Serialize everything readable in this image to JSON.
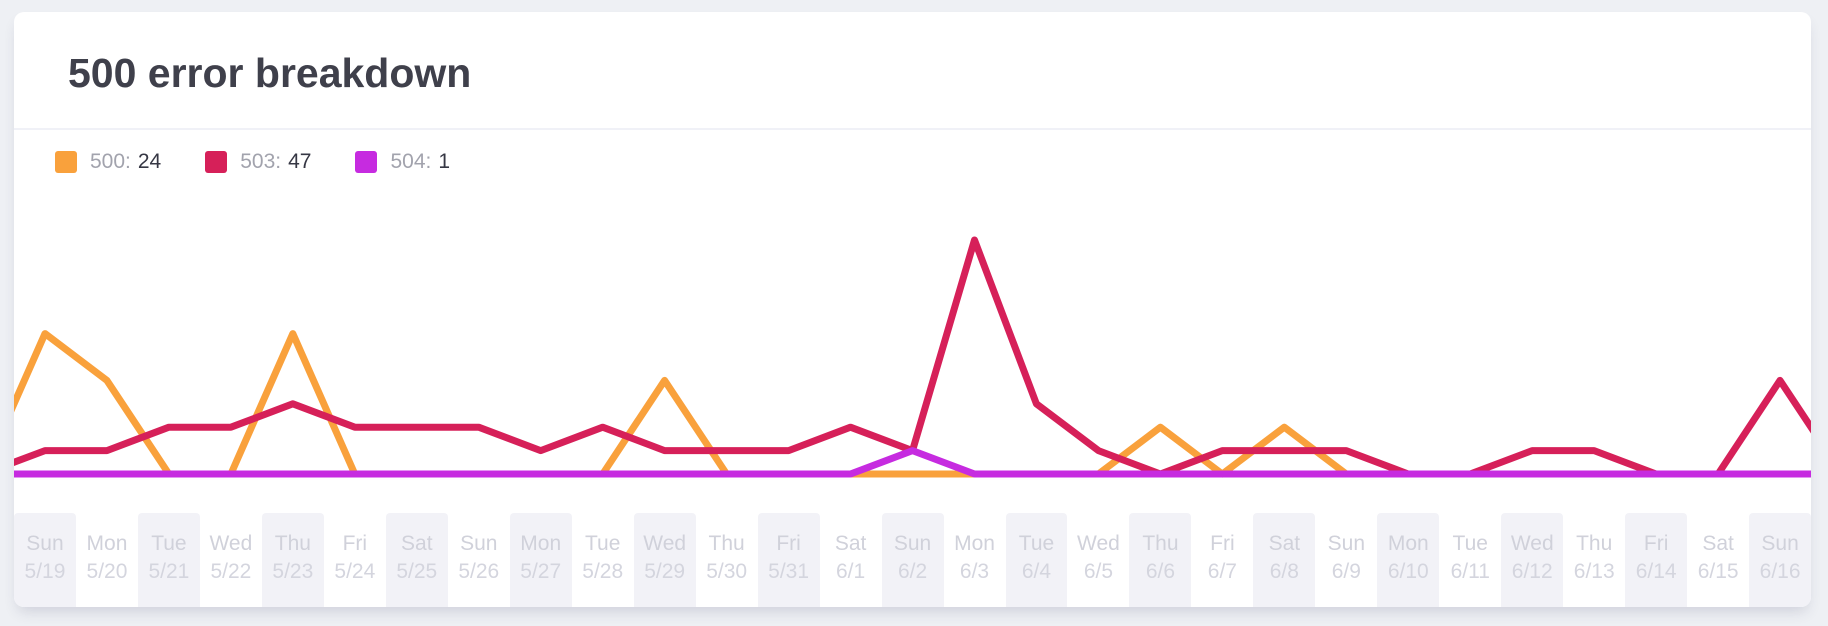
{
  "card": {
    "title": "500 error breakdown"
  },
  "legend": [
    {
      "name": "500",
      "label": "500:",
      "value": "24",
      "color": "#f9a13c"
    },
    {
      "name": "503",
      "label": "503:",
      "value": "47",
      "color": "#d62059"
    },
    {
      "name": "504",
      "label": "504:",
      "value": "1",
      "color": "#c62be0"
    }
  ],
  "chart_data": {
    "type": "line",
    "title": "500 error breakdown",
    "xlabel": "",
    "ylabel": "",
    "ylim": [
      0,
      12
    ],
    "grid": false,
    "y_axis_visible": false,
    "legend_position": "top-left",
    "x_tick_style": "two-line day/date labels with alternating gray stripes",
    "categories": [
      {
        "day": "Sun",
        "date": "5/19"
      },
      {
        "day": "Mon",
        "date": "5/20"
      },
      {
        "day": "Tue",
        "date": "5/21"
      },
      {
        "day": "Wed",
        "date": "5/22"
      },
      {
        "day": "Thu",
        "date": "5/23"
      },
      {
        "day": "Fri",
        "date": "5/24"
      },
      {
        "day": "Sat",
        "date": "5/25"
      },
      {
        "day": "Sun",
        "date": "5/26"
      },
      {
        "day": "Mon",
        "date": "5/27"
      },
      {
        "day": "Tue",
        "date": "5/28"
      },
      {
        "day": "Wed",
        "date": "5/29"
      },
      {
        "day": "Thu",
        "date": "5/30"
      },
      {
        "day": "Fri",
        "date": "5/31"
      },
      {
        "day": "Sat",
        "date": "6/1"
      },
      {
        "day": "Sun",
        "date": "6/2"
      },
      {
        "day": "Mon",
        "date": "6/3"
      },
      {
        "day": "Tue",
        "date": "6/4"
      },
      {
        "day": "Wed",
        "date": "6/5"
      },
      {
        "day": "Thu",
        "date": "6/6"
      },
      {
        "day": "Fri",
        "date": "6/7"
      },
      {
        "day": "Sat",
        "date": "6/8"
      },
      {
        "day": "Sun",
        "date": "6/9"
      },
      {
        "day": "Mon",
        "date": "6/10"
      },
      {
        "day": "Tue",
        "date": "6/11"
      },
      {
        "day": "Wed",
        "date": "6/12"
      },
      {
        "day": "Thu",
        "date": "6/13"
      },
      {
        "day": "Fri",
        "date": "6/14"
      },
      {
        "day": "Sat",
        "date": "6/15"
      },
      {
        "day": "Sun",
        "date": "6/16"
      }
    ],
    "series": [
      {
        "name": "500",
        "color": "#f9a13c",
        "total": 24,
        "values": [
          6,
          4,
          0,
          0,
          6,
          0,
          0,
          0,
          0,
          0,
          4,
          0,
          0,
          0,
          0,
          0,
          0,
          0,
          2,
          0,
          2,
          0,
          0,
          0,
          0,
          0,
          0,
          0,
          0
        ]
      },
      {
        "name": "503",
        "color": "#d62059",
        "total": 47,
        "values": [
          1,
          1,
          2,
          2,
          3,
          2,
          2,
          2,
          1,
          2,
          1,
          1,
          1,
          2,
          1,
          10,
          3,
          1,
          0,
          1,
          1,
          1,
          0,
          0,
          1,
          1,
          0,
          0,
          4
        ]
      },
      {
        "name": "504",
        "color": "#c62be0",
        "total": 1,
        "values": [
          0,
          0,
          0,
          0,
          0,
          0,
          0,
          0,
          0,
          0,
          0,
          0,
          0,
          0,
          1,
          0,
          0,
          0,
          0,
          0,
          0,
          0,
          0,
          0,
          0,
          0,
          0,
          0,
          0
        ]
      }
    ]
  }
}
